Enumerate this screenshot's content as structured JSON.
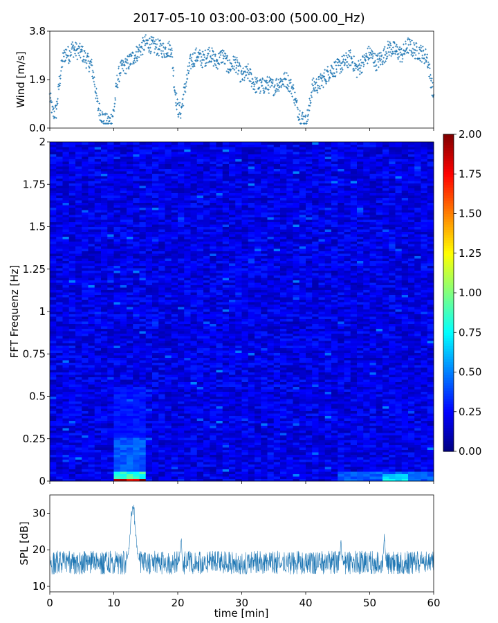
{
  "title": "2017-05-10 03:00-03:00 (500.00_Hz)",
  "chart_data": [
    {
      "type": "scatter",
      "panel": "wind",
      "ylabel": "Wind [m/s]",
      "xlim": [
        0,
        60
      ],
      "ylim": [
        0,
        3.8
      ],
      "y_ticks": [
        "0.0",
        "1.9",
        "3.8"
      ],
      "y_tick_values": [
        0.0,
        1.9,
        3.8
      ],
      "marker": "+",
      "color": "#1f77b4",
      "sample_interval_min": 0.05,
      "profile": {
        "x": [
          0,
          0.5,
          1,
          1.5,
          2,
          2.5,
          3,
          3.5,
          4,
          5,
          6,
          6.5,
          7,
          7.5,
          8,
          8.5,
          9,
          9.5,
          10,
          10.5,
          11,
          11.5,
          12,
          13,
          14,
          15,
          16,
          17,
          18,
          19,
          19.5,
          20,
          20.5,
          21,
          22,
          23,
          24,
          25,
          26,
          27,
          28,
          29,
          30,
          31,
          32,
          33,
          34,
          35,
          36,
          37,
          38,
          38.5,
          39,
          39.5,
          40,
          40.5,
          41,
          42,
          43,
          44,
          45,
          46,
          47,
          48,
          49,
          50,
          51,
          52,
          53,
          54,
          55,
          56,
          57,
          58,
          59,
          60
        ],
        "y": [
          1.2,
          0.5,
          0.6,
          1.8,
          2.7,
          3.0,
          2.9,
          3.2,
          3.1,
          3.0,
          2.6,
          2.5,
          1.8,
          0.8,
          0.5,
          0.2,
          0.15,
          0.2,
          0.6,
          1.8,
          2.3,
          2.4,
          2.5,
          2.8,
          3.1,
          3.4,
          3.3,
          3.2,
          3.1,
          3.2,
          1.6,
          0.7,
          0.6,
          1.4,
          2.6,
          2.9,
          2.7,
          3.0,
          2.6,
          2.9,
          2.4,
          2.6,
          2.0,
          2.2,
          1.7,
          1.6,
          1.7,
          1.6,
          1.8,
          1.9,
          1.5,
          0.9,
          0.5,
          0.3,
          0.15,
          0.6,
          1.6,
          1.7,
          2.0,
          2.3,
          2.4,
          2.6,
          2.8,
          2.3,
          2.6,
          3.0,
          2.6,
          2.8,
          3.2,
          3.1,
          2.9,
          3.3,
          3.1,
          3.0,
          2.8,
          1.2
        ]
      },
      "noise": 0.35
    },
    {
      "type": "heatmap",
      "panel": "spectrogram",
      "ylabel": "FFT Frequenz [Hz]",
      "xlim": [
        0,
        60
      ],
      "ylim": [
        0,
        2
      ],
      "y_ticks": [
        "0",
        "0.25",
        "0.5",
        "0.75",
        "1",
        "1.25",
        "1.5",
        "1.75",
        "2"
      ],
      "y_tick_values": [
        0,
        0.25,
        0.5,
        0.75,
        1,
        1.25,
        1.5,
        1.75,
        2
      ],
      "colormap": "jet",
      "colorbar": {
        "vmin": 0.0,
        "vmax": 2.0,
        "ticks": [
          "0.00",
          "0.25",
          "0.50",
          "0.75",
          "1.00",
          "1.25",
          "1.50",
          "1.75",
          "2.00"
        ],
        "tick_values": [
          0.0,
          0.25,
          0.5,
          0.75,
          1.0,
          1.25,
          1.5,
          1.75,
          2.0
        ]
      },
      "time_bins": 60,
      "freq_bins": 140,
      "background_level": 0.25,
      "events": [
        {
          "t0": 10.5,
          "t1": 14.8,
          "f0": 0.0,
          "f1": 0.02,
          "level": 2.0
        },
        {
          "t0": 10.5,
          "t1": 14.8,
          "f0": 0.02,
          "f1": 0.06,
          "level": 0.9
        },
        {
          "t0": 10.5,
          "t1": 14.8,
          "f0": 0.06,
          "f1": 0.25,
          "level": 0.45
        },
        {
          "t0": 10.5,
          "t1": 14.8,
          "f0": 0.25,
          "f1": 0.55,
          "level": 0.3
        },
        {
          "t0": 45,
          "t1": 60,
          "f0": 0.0,
          "f1": 0.06,
          "level": 0.45
        },
        {
          "t0": 52,
          "t1": 56,
          "f0": 0.0,
          "f1": 0.04,
          "level": 0.75
        }
      ]
    },
    {
      "type": "line",
      "panel": "spl",
      "xlabel": "time [min]",
      "ylabel": "SPL [dB]",
      "xlim": [
        0,
        60
      ],
      "ylim": [
        8.5,
        35
      ],
      "x_ticks": [
        "0",
        "10",
        "20",
        "30",
        "40",
        "50",
        "60"
      ],
      "x_tick_values": [
        0,
        10,
        20,
        30,
        40,
        50,
        60
      ],
      "y_ticks": [
        "10",
        "20",
        "30"
      ],
      "y_tick_values": [
        10,
        20,
        30
      ],
      "color": "#1f77b4",
      "baseline_db": 16.5,
      "noise_db": 3.2,
      "peaks": [
        {
          "t": 13.0,
          "db": 33.0,
          "width": 0.55
        },
        {
          "t": 20.5,
          "db": 24.5,
          "width": 0.15
        },
        {
          "t": 45.5,
          "db": 22.5,
          "width": 0.12
        },
        {
          "t": 52.3,
          "db": 24.0,
          "width": 0.15
        }
      ]
    }
  ]
}
